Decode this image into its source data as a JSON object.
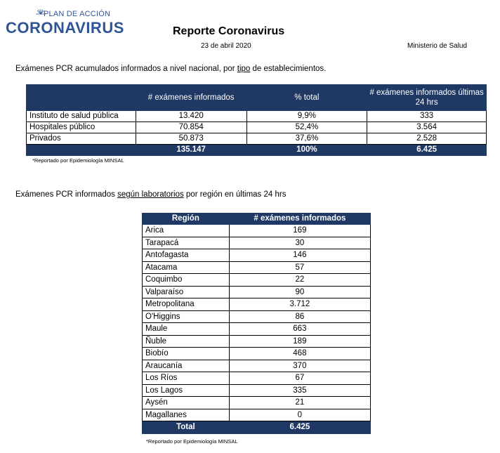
{
  "header": {
    "logo_top": "PLAN DE ACCIÓN",
    "logo_main": "CORONAVIRUS",
    "title": "Reporte Coronavirus",
    "date": "23 de abril 2020",
    "ministry": "Ministerio de Salud"
  },
  "section1": {
    "caption_pre": "Exámenes PCR acumulados informados a nivel nacional, por ",
    "caption_u": "tipo",
    "caption_post": " de establecimientos.",
    "headers": [
      "",
      "# exámenes informados",
      "% total",
      "# exámenes informados últimas 24 hrs"
    ],
    "rows": [
      [
        "Instituto de salud pública",
        "13.420",
        "9,9%",
        "333"
      ],
      [
        "Hospitales público",
        "70.854",
        "52,4%",
        "3.564"
      ],
      [
        "Privados",
        "50.873",
        "37,6%",
        "2.528"
      ]
    ],
    "total": [
      "",
      "135.147",
      "100%",
      "6.425"
    ],
    "note": "*Reportado por Epidemiología MINSAL"
  },
  "section2": {
    "caption_pre": "Exámenes PCR informados ",
    "caption_u": "según laboratorios",
    "caption_post": " por región en últimas 24 hrs",
    "headers": [
      "Región",
      "# exámenes informados"
    ],
    "rows": [
      [
        "Arica",
        "169"
      ],
      [
        "Tarapacá",
        "30"
      ],
      [
        "Antofagasta",
        "146"
      ],
      [
        "Atacama",
        "57"
      ],
      [
        "Coquimbo",
        "22"
      ],
      [
        "Valparaíso",
        "90"
      ],
      [
        "Metropolitana",
        "3.712"
      ],
      [
        "O'Higgins",
        "86"
      ],
      [
        "Maule",
        "663"
      ],
      [
        "Ñuble",
        "189"
      ],
      [
        "Biobío",
        "468"
      ],
      [
        "Araucanía",
        "370"
      ],
      [
        "Los Ríos",
        "67"
      ],
      [
        "Los Lagos",
        "335"
      ],
      [
        "Aysén",
        "21"
      ],
      [
        "Magallanes",
        "0"
      ]
    ],
    "total": [
      "Total",
      "6.425"
    ],
    "note": "*Reportado por Epidemiología MINSAL"
  },
  "colors": {
    "header_fill": "#1f3864",
    "logo_blue": "#2f5597"
  }
}
